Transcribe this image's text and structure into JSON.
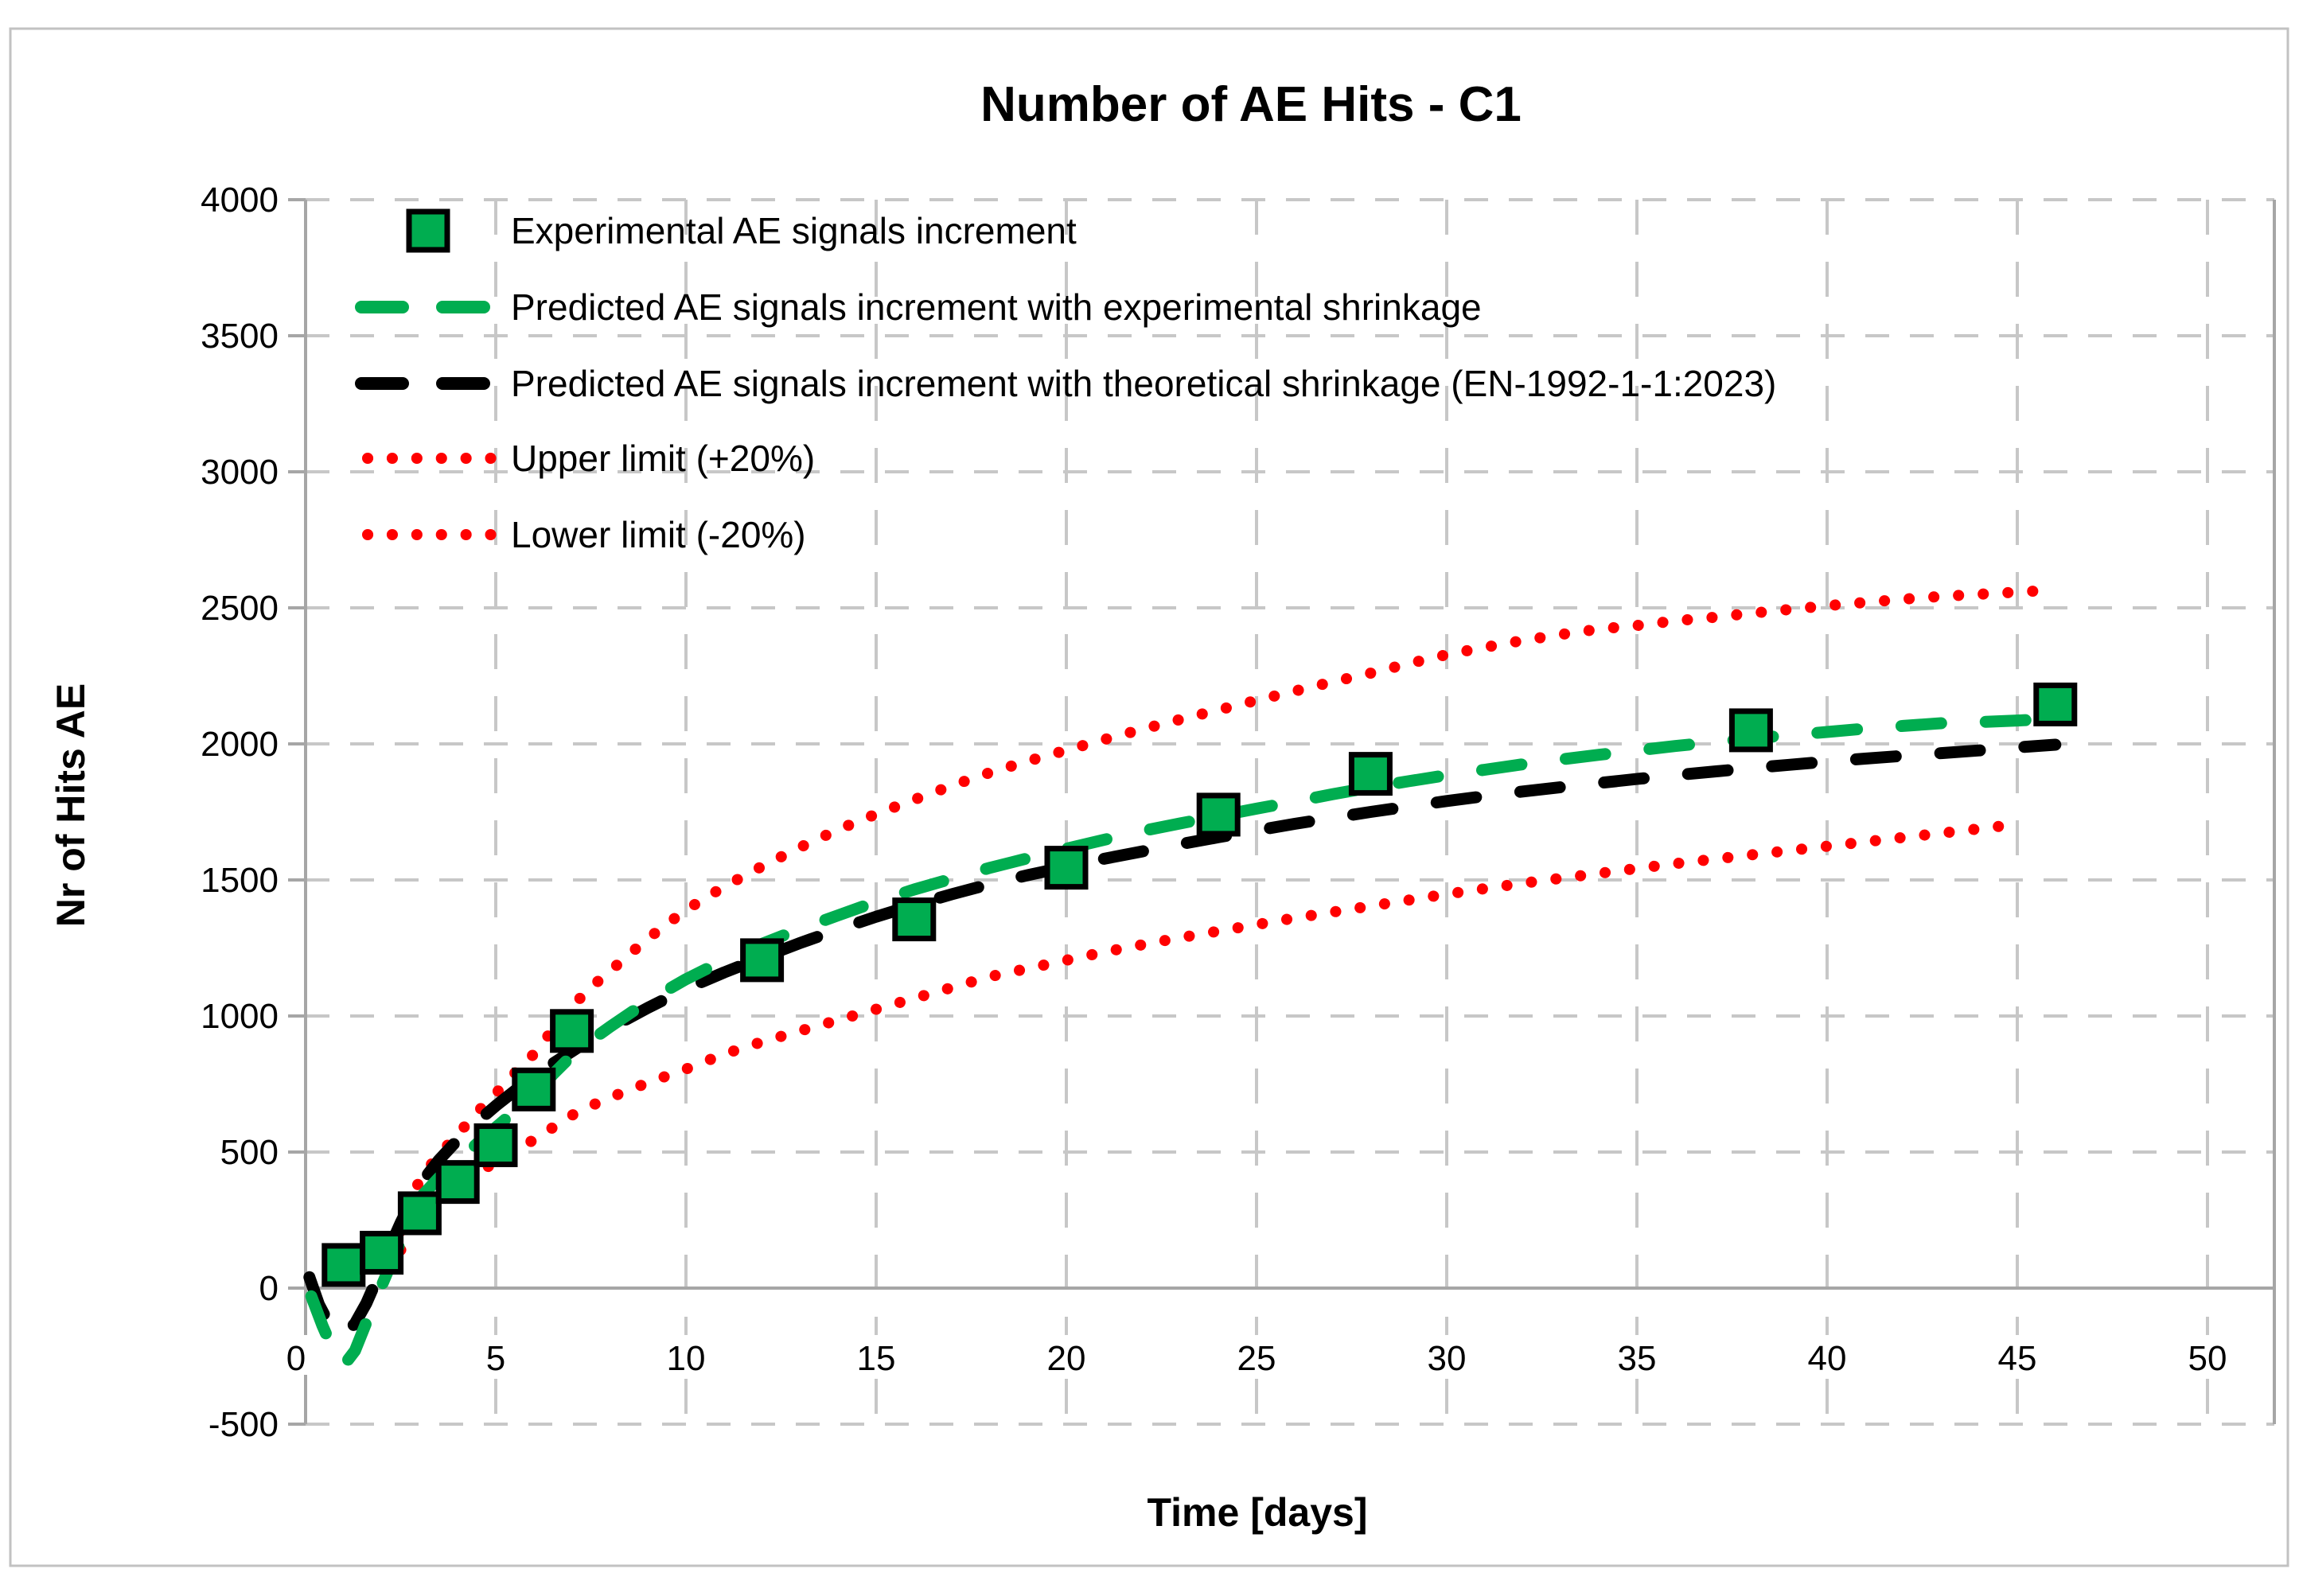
{
  "figure": {
    "title": "Number of AE Hits - C1",
    "background": "#FFFFFF",
    "border_color": "#C2C2C2"
  },
  "axes": {
    "x": {
      "title": "Time [days]",
      "min": 0,
      "max": 50,
      "tick_step": 5,
      "tick_labels": [
        "0",
        "5",
        "10",
        "15",
        "20",
        "25",
        "30",
        "35",
        "40",
        "45",
        "50"
      ]
    },
    "y": {
      "title": "Nr of Hits AE",
      "min": -500,
      "max": 4000,
      "tick_step": 500,
      "tick_labels": [
        "4000",
        "3500",
        "3000",
        "2500",
        "2000",
        "1500",
        "1000",
        "500",
        "0",
        "-500"
      ]
    }
  },
  "legend": {
    "position": "top-left-inside",
    "items": [
      {
        "label": "Experimental AE signals increment",
        "marker": "square",
        "color": "#00AD50"
      },
      {
        "label": "Predicted AE signals increment with experimental shrinkage",
        "marker": "dashed-line",
        "color": "#00AD50"
      },
      {
        "label": "Predicted AE signals increment with theoretical shrinkage (EN-1992-1-1:2023)",
        "marker": "dashed-line",
        "color": "#000000"
      },
      {
        "label": "Upper limit (+20%)",
        "marker": "dotted-line",
        "color": "#FF0000"
      },
      {
        "label": "Lower limit (-20%)",
        "marker": "dotted-line",
        "color": "#FF0000"
      }
    ]
  },
  "colors": {
    "experimental_green": "#00AD50",
    "theoretical_black": "#000000",
    "limit_red": "#FF0000",
    "gridline": "#C7C7C7",
    "axis_line": "#A6A6A6",
    "text": "#000000"
  },
  "chart_data": {
    "type": "line",
    "title": "Number of AE Hits - C1",
    "xlabel": "Time [days]",
    "ylabel": "Nr of Hits AE",
    "xlim": [
      0,
      51.5
    ],
    "ylim": [
      -500,
      4000
    ],
    "grid": true,
    "legend_position": "upper left inside",
    "series": [
      {
        "name": "Experimental AE signals increment",
        "type": "scatter",
        "marker": "square",
        "color": "#00AD50",
        "points": [
          [
            1,
            85
          ],
          [
            2,
            130
          ],
          [
            3,
            275
          ],
          [
            4,
            390
          ],
          [
            5,
            525
          ],
          [
            6,
            730
          ],
          [
            7,
            945
          ],
          [
            12,
            1205
          ],
          [
            16,
            1355
          ],
          [
            20,
            1545
          ],
          [
            24,
            1740
          ],
          [
            28,
            1890
          ],
          [
            38,
            2050
          ],
          [
            46,
            2145
          ]
        ]
      },
      {
        "name": "Predicted AE signals increment with experimental shrinkage",
        "type": "line",
        "style": "dashed",
        "color": "#00AD50",
        "points": [
          [
            0.15,
            -30
          ],
          [
            0.45,
            -140
          ],
          [
            0.7,
            -220
          ],
          [
            1,
            -285
          ],
          [
            1.3,
            -230
          ],
          [
            1.6,
            -125
          ],
          [
            1.9,
            -25
          ],
          [
            2.2,
            75
          ],
          [
            2.5,
            170
          ],
          [
            3,
            330
          ],
          [
            3.5,
            405
          ],
          [
            4,
            465
          ],
          [
            4.5,
            530
          ],
          [
            5,
            590
          ],
          [
            5.5,
            650
          ],
          [
            6,
            710
          ],
          [
            6.5,
            785
          ],
          [
            7,
            855
          ],
          [
            7.5,
            910
          ],
          [
            8,
            960
          ],
          [
            9,
            1055
          ],
          [
            10,
            1135
          ],
          [
            11,
            1205
          ],
          [
            12,
            1265
          ],
          [
            13,
            1320
          ],
          [
            14,
            1370
          ],
          [
            15,
            1420
          ],
          [
            16,
            1465
          ],
          [
            17,
            1505
          ],
          [
            18,
            1545
          ],
          [
            19,
            1580
          ],
          [
            20,
            1615
          ],
          [
            21,
            1648
          ],
          [
            22,
            1680
          ],
          [
            23,
            1708
          ],
          [
            24,
            1735
          ],
          [
            25,
            1762
          ],
          [
            26,
            1788
          ],
          [
            27,
            1815
          ],
          [
            28,
            1840
          ],
          [
            29,
            1863
          ],
          [
            30,
            1885
          ],
          [
            31,
            1905
          ],
          [
            32,
            1925
          ],
          [
            33,
            1943
          ],
          [
            34,
            1960
          ],
          [
            35,
            1976
          ],
          [
            36,
            1992
          ],
          [
            37,
            2006
          ],
          [
            38,
            2020
          ],
          [
            39,
            2032
          ],
          [
            40,
            2044
          ],
          [
            41,
            2056
          ],
          [
            42,
            2066
          ],
          [
            43,
            2076
          ],
          [
            44,
            2080
          ],
          [
            45,
            2086
          ],
          [
            46,
            2092
          ]
        ]
      },
      {
        "name": "Predicted AE signals increment with theoretical shrinkage (EN-1992-1-1:2023)",
        "type": "line",
        "style": "dashed",
        "color": "#000000",
        "points": [
          [
            0.1,
            40
          ],
          [
            0.35,
            -60
          ],
          [
            0.65,
            -140
          ],
          [
            1,
            -175
          ],
          [
            1.3,
            -130
          ],
          [
            1.6,
            -55
          ],
          [
            1.85,
            25
          ],
          [
            2.1,
            115
          ],
          [
            2.5,
            240
          ],
          [
            3,
            380
          ],
          [
            3.5,
            470
          ],
          [
            4,
            545
          ],
          [
            4.5,
            610
          ],
          [
            5,
            670
          ],
          [
            5.5,
            725
          ],
          [
            6,
            775
          ],
          [
            6.5,
            825
          ],
          [
            7,
            870
          ],
          [
            7.5,
            915
          ],
          [
            8,
            955
          ],
          [
            9,
            1030
          ],
          [
            10,
            1100
          ],
          [
            11,
            1160
          ],
          [
            12,
            1215
          ],
          [
            13,
            1268
          ],
          [
            14,
            1318
          ],
          [
            15,
            1365
          ],
          [
            16,
            1408
          ],
          [
            17,
            1448
          ],
          [
            18,
            1485
          ],
          [
            19,
            1518
          ],
          [
            20,
            1548
          ],
          [
            21,
            1578
          ],
          [
            22,
            1605
          ],
          [
            23,
            1632
          ],
          [
            24,
            1657
          ],
          [
            25,
            1682
          ],
          [
            26,
            1706
          ],
          [
            27,
            1728
          ],
          [
            28,
            1750
          ],
          [
            29,
            1770
          ],
          [
            30,
            1790
          ],
          [
            31,
            1808
          ],
          [
            32,
            1825
          ],
          [
            33,
            1841
          ],
          [
            34,
            1856
          ],
          [
            35,
            1871
          ],
          [
            36,
            1885
          ],
          [
            37,
            1898
          ],
          [
            38,
            1911
          ],
          [
            39,
            1923
          ],
          [
            40,
            1935
          ],
          [
            41,
            1946
          ],
          [
            42,
            1956
          ],
          [
            43,
            1966
          ],
          [
            44,
            1976
          ],
          [
            45,
            1987
          ],
          [
            46,
            1997
          ]
        ]
      },
      {
        "name": "Upper limit (+20%)",
        "type": "line",
        "style": "dotted",
        "color": "#FF0000",
        "points": [
          [
            2.5,
            210
          ],
          [
            3,
            400
          ],
          [
            3.5,
            490
          ],
          [
            4,
            565
          ],
          [
            4.5,
            645
          ],
          [
            5,
            715
          ],
          [
            5.5,
            790
          ],
          [
            6,
            860
          ],
          [
            6.5,
            950
          ],
          [
            7,
            1035
          ],
          [
            7.5,
            1105
          ],
          [
            8,
            1165
          ],
          [
            9,
            1285
          ],
          [
            10,
            1390
          ],
          [
            11,
            1475
          ],
          [
            12,
            1550
          ],
          [
            13,
            1620
          ],
          [
            14,
            1685
          ],
          [
            15,
            1742
          ],
          [
            16,
            1795
          ],
          [
            17,
            1847
          ],
          [
            18,
            1895
          ],
          [
            19,
            1937
          ],
          [
            20,
            1977
          ],
          [
            21,
            2016
          ],
          [
            22,
            2054
          ],
          [
            23,
            2090
          ],
          [
            24,
            2125
          ],
          [
            25,
            2160
          ],
          [
            26,
            2194
          ],
          [
            27,
            2228
          ],
          [
            28,
            2260
          ],
          [
            29,
            2295
          ],
          [
            30,
            2328
          ],
          [
            31,
            2355
          ],
          [
            32,
            2380
          ],
          [
            33,
            2402
          ],
          [
            34,
            2422
          ],
          [
            35,
            2435
          ],
          [
            36,
            2452
          ],
          [
            37,
            2465
          ],
          [
            38,
            2480
          ],
          [
            39,
            2494
          ],
          [
            40,
            2508
          ],
          [
            41,
            2520
          ],
          [
            42,
            2532
          ],
          [
            43,
            2542
          ],
          [
            44,
            2550
          ],
          [
            45,
            2558
          ],
          [
            46,
            2566
          ]
        ]
      },
      {
        "name": "Lower limit (-20%)",
        "type": "line",
        "style": "dotted",
        "color": "#FF0000",
        "points": [
          [
            2.5,
            140
          ],
          [
            3,
            265
          ],
          [
            3.5,
            325
          ],
          [
            4,
            375
          ],
          [
            4.5,
            420
          ],
          [
            5,
            465
          ],
          [
            5.5,
            505
          ],
          [
            6,
            545
          ],
          [
            6.5,
            590
          ],
          [
            7,
            635
          ],
          [
            7.5,
            670
          ],
          [
            8,
            700
          ],
          [
            9,
            755
          ],
          [
            10,
            805
          ],
          [
            11,
            860
          ],
          [
            12,
            905
          ],
          [
            13,
            945
          ],
          [
            14,
            985
          ],
          [
            15,
            1025
          ],
          [
            16,
            1065
          ],
          [
            17,
            1105
          ],
          [
            18,
            1145
          ],
          [
            19,
            1175
          ],
          [
            20,
            1205
          ],
          [
            21,
            1235
          ],
          [
            22,
            1262
          ],
          [
            23,
            1288
          ],
          [
            24,
            1312
          ],
          [
            25,
            1336
          ],
          [
            26,
            1360
          ],
          [
            27,
            1382
          ],
          [
            28,
            1404
          ],
          [
            29,
            1426
          ],
          [
            30,
            1448
          ],
          [
            31,
            1468
          ],
          [
            32,
            1488
          ],
          [
            33,
            1506
          ],
          [
            34,
            1524
          ],
          [
            35,
            1542
          ],
          [
            36,
            1560
          ],
          [
            37,
            1576
          ],
          [
            38,
            1592
          ],
          [
            39,
            1608
          ],
          [
            40,
            1624
          ],
          [
            41,
            1640
          ],
          [
            42,
            1656
          ],
          [
            43,
            1672
          ],
          [
            44,
            1688
          ],
          [
            45,
            1705
          ]
        ]
      }
    ]
  }
}
